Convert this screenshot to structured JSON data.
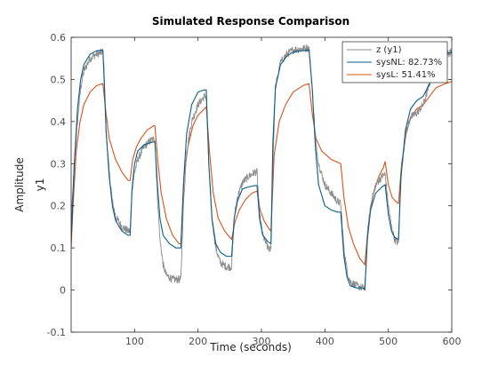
{
  "chart_data": {
    "type": "line",
    "title": "Simulated Response Comparison",
    "xlabel": "Time (seconds)",
    "ylabel_outer": "Amplitude",
    "ylabel_inner": "y1",
    "xlim": [
      0,
      600
    ],
    "ylim": [
      -0.1,
      0.6
    ],
    "xticks": [
      100,
      200,
      300,
      400,
      500,
      600
    ],
    "yticks": [
      -0.1,
      0,
      0.1,
      0.2,
      0.3,
      0.4,
      0.5,
      0.6
    ],
    "ytick_labels": [
      "-0.1",
      "0",
      "0.1",
      "0.2",
      "0.3",
      "0.4",
      "0.5",
      "0.6"
    ],
    "grid": false,
    "legend_position": "top-right",
    "series": [
      {
        "name": "z (y1)",
        "color": "#8c8c8c",
        "noisy": true,
        "points": [
          [
            0,
            0.16
          ],
          [
            5,
            0.3
          ],
          [
            10,
            0.4
          ],
          [
            15,
            0.48
          ],
          [
            20,
            0.52
          ],
          [
            30,
            0.55
          ],
          [
            40,
            0.56
          ],
          [
            50,
            0.565
          ],
          [
            52,
            0.52
          ],
          [
            55,
            0.38
          ],
          [
            60,
            0.28
          ],
          [
            65,
            0.21
          ],
          [
            70,
            0.175
          ],
          [
            80,
            0.15
          ],
          [
            90,
            0.14
          ],
          [
            93,
            0.14
          ],
          [
            96,
            0.24
          ],
          [
            100,
            0.28
          ],
          [
            105,
            0.31
          ],
          [
            115,
            0.34
          ],
          [
            125,
            0.355
          ],
          [
            132,
            0.36
          ],
          [
            136,
            0.22
          ],
          [
            140,
            0.12
          ],
          [
            145,
            0.06
          ],
          [
            150,
            0.035
          ],
          [
            160,
            0.025
          ],
          [
            170,
            0.025
          ],
          [
            173,
            0.025
          ],
          [
            177,
            0.2
          ],
          [
            182,
            0.33
          ],
          [
            190,
            0.4
          ],
          [
            200,
            0.44
          ],
          [
            210,
            0.46
          ],
          [
            213,
            0.46
          ],
          [
            217,
            0.3
          ],
          [
            222,
            0.17
          ],
          [
            228,
            0.1
          ],
          [
            235,
            0.065
          ],
          [
            245,
            0.055
          ],
          [
            253,
            0.055
          ],
          [
            257,
            0.17
          ],
          [
            262,
            0.22
          ],
          [
            270,
            0.255
          ],
          [
            280,
            0.27
          ],
          [
            290,
            0.28
          ],
          [
            293,
            0.28
          ],
          [
            297,
            0.18
          ],
          [
            302,
            0.13
          ],
          [
            310,
            0.1
          ],
          [
            315,
            0.095
          ],
          [
            318,
            0.3
          ],
          [
            322,
            0.48
          ],
          [
            330,
            0.54
          ],
          [
            340,
            0.56
          ],
          [
            350,
            0.57
          ],
          [
            375,
            0.575
          ],
          [
            380,
            0.48
          ],
          [
            385,
            0.36
          ],
          [
            390,
            0.3
          ],
          [
            400,
            0.25
          ],
          [
            410,
            0.23
          ],
          [
            420,
            0.21
          ],
          [
            425,
            0.205
          ],
          [
            430,
            0.1
          ],
          [
            435,
            0.045
          ],
          [
            440,
            0.02
          ],
          [
            450,
            0.01
          ],
          [
            460,
            0.005
          ],
          [
            463,
            0.005
          ],
          [
            467,
            0.13
          ],
          [
            472,
            0.2
          ],
          [
            480,
            0.25
          ],
          [
            490,
            0.27
          ],
          [
            495,
            0.275
          ],
          [
            500,
            0.2
          ],
          [
            505,
            0.15
          ],
          [
            510,
            0.12
          ],
          [
            516,
            0.11
          ],
          [
            520,
            0.27
          ],
          [
            527,
            0.37
          ],
          [
            535,
            0.41
          ],
          [
            545,
            0.42
          ],
          [
            555,
            0.44
          ],
          [
            565,
            0.49
          ],
          [
            573,
            0.53
          ],
          [
            580,
            0.555
          ],
          [
            590,
            0.56
          ],
          [
            600,
            0.565
          ]
        ]
      },
      {
        "name": "sysNL: 82.73%",
        "color": "#0e5d8a",
        "noisy": false,
        "points": [
          [
            0,
            0.12
          ],
          [
            5,
            0.3
          ],
          [
            10,
            0.43
          ],
          [
            15,
            0.5
          ],
          [
            20,
            0.535
          ],
          [
            30,
            0.56
          ],
          [
            40,
            0.568
          ],
          [
            50,
            0.57
          ],
          [
            52,
            0.5
          ],
          [
            55,
            0.38
          ],
          [
            60,
            0.27
          ],
          [
            65,
            0.2
          ],
          [
            70,
            0.165
          ],
          [
            80,
            0.14
          ],
          [
            90,
            0.13
          ],
          [
            93,
            0.13
          ],
          [
            96,
            0.24
          ],
          [
            100,
            0.3
          ],
          [
            105,
            0.33
          ],
          [
            115,
            0.345
          ],
          [
            125,
            0.35
          ],
          [
            132,
            0.352
          ],
          [
            136,
            0.25
          ],
          [
            140,
            0.17
          ],
          [
            145,
            0.13
          ],
          [
            155,
            0.11
          ],
          [
            165,
            0.1
          ],
          [
            173,
            0.1
          ],
          [
            177,
            0.25
          ],
          [
            182,
            0.37
          ],
          [
            190,
            0.44
          ],
          [
            200,
            0.47
          ],
          [
            210,
            0.475
          ],
          [
            213,
            0.475
          ],
          [
            217,
            0.3
          ],
          [
            222,
            0.17
          ],
          [
            228,
            0.11
          ],
          [
            235,
            0.09
          ],
          [
            245,
            0.08
          ],
          [
            253,
            0.08
          ],
          [
            257,
            0.17
          ],
          [
            262,
            0.21
          ],
          [
            270,
            0.24
          ],
          [
            280,
            0.245
          ],
          [
            290,
            0.248
          ],
          [
            293,
            0.248
          ],
          [
            297,
            0.17
          ],
          [
            302,
            0.13
          ],
          [
            310,
            0.115
          ],
          [
            315,
            0.11
          ],
          [
            318,
            0.35
          ],
          [
            322,
            0.48
          ],
          [
            330,
            0.535
          ],
          [
            340,
            0.555
          ],
          [
            350,
            0.565
          ],
          [
            375,
            0.57
          ],
          [
            380,
            0.48
          ],
          [
            385,
            0.34
          ],
          [
            390,
            0.25
          ],
          [
            400,
            0.2
          ],
          [
            410,
            0.19
          ],
          [
            420,
            0.185
          ],
          [
            425,
            0.185
          ],
          [
            430,
            0.08
          ],
          [
            435,
            0.03
          ],
          [
            440,
            0.01
          ],
          [
            450,
            0.005
          ],
          [
            460,
            0.005
          ],
          [
            463,
            0.0
          ],
          [
            467,
            0.12
          ],
          [
            472,
            0.19
          ],
          [
            480,
            0.23
          ],
          [
            490,
            0.245
          ],
          [
            495,
            0.25
          ],
          [
            500,
            0.18
          ],
          [
            505,
            0.14
          ],
          [
            510,
            0.125
          ],
          [
            516,
            0.12
          ],
          [
            520,
            0.27
          ],
          [
            527,
            0.38
          ],
          [
            535,
            0.43
          ],
          [
            545,
            0.45
          ],
          [
            555,
            0.46
          ],
          [
            565,
            0.49
          ],
          [
            573,
            0.52
          ],
          [
            580,
            0.545
          ],
          [
            590,
            0.56
          ],
          [
            600,
            0.565
          ]
        ]
      },
      {
        "name": "sysL: 51.41%",
        "color": "#d95319",
        "noisy": false,
        "points": [
          [
            0,
            0.1
          ],
          [
            3,
            0.2
          ],
          [
            8,
            0.33
          ],
          [
            14,
            0.4
          ],
          [
            20,
            0.44
          ],
          [
            30,
            0.47
          ],
          [
            40,
            0.485
          ],
          [
            50,
            0.49
          ],
          [
            55,
            0.42
          ],
          [
            60,
            0.36
          ],
          [
            70,
            0.31
          ],
          [
            80,
            0.28
          ],
          [
            90,
            0.26
          ],
          [
            93,
            0.26
          ],
          [
            97,
            0.31
          ],
          [
            103,
            0.34
          ],
          [
            110,
            0.36
          ],
          [
            120,
            0.38
          ],
          [
            130,
            0.39
          ],
          [
            132,
            0.39
          ],
          [
            137,
            0.3
          ],
          [
            142,
            0.23
          ],
          [
            150,
            0.17
          ],
          [
            160,
            0.13
          ],
          [
            170,
            0.11
          ],
          [
            173,
            0.11
          ],
          [
            178,
            0.27
          ],
          [
            184,
            0.34
          ],
          [
            192,
            0.39
          ],
          [
            200,
            0.415
          ],
          [
            210,
            0.43
          ],
          [
            213,
            0.435
          ],
          [
            218,
            0.33
          ],
          [
            224,
            0.23
          ],
          [
            232,
            0.17
          ],
          [
            242,
            0.14
          ],
          [
            253,
            0.12
          ],
          [
            258,
            0.16
          ],
          [
            265,
            0.19
          ],
          [
            275,
            0.215
          ],
          [
            285,
            0.23
          ],
          [
            293,
            0.235
          ],
          [
            298,
            0.19
          ],
          [
            304,
            0.165
          ],
          [
            312,
            0.145
          ],
          [
            315,
            0.14
          ],
          [
            320,
            0.32
          ],
          [
            328,
            0.4
          ],
          [
            338,
            0.44
          ],
          [
            350,
            0.47
          ],
          [
            365,
            0.485
          ],
          [
            375,
            0.49
          ],
          [
            380,
            0.42
          ],
          [
            386,
            0.36
          ],
          [
            395,
            0.33
          ],
          [
            410,
            0.31
          ],
          [
            425,
            0.3
          ],
          [
            430,
            0.22
          ],
          [
            437,
            0.15
          ],
          [
            445,
            0.11
          ],
          [
            455,
            0.075
          ],
          [
            463,
            0.06
          ],
          [
            468,
            0.15
          ],
          [
            475,
            0.22
          ],
          [
            485,
            0.27
          ],
          [
            492,
            0.29
          ],
          [
            495,
            0.305
          ],
          [
            500,
            0.25
          ],
          [
            506,
            0.22
          ],
          [
            512,
            0.21
          ],
          [
            516,
            0.205
          ],
          [
            521,
            0.3
          ],
          [
            528,
            0.37
          ],
          [
            535,
            0.41
          ],
          [
            545,
            0.43
          ],
          [
            555,
            0.44
          ],
          [
            565,
            0.46
          ],
          [
            575,
            0.48
          ],
          [
            590,
            0.49
          ],
          [
            600,
            0.495
          ]
        ]
      }
    ]
  }
}
